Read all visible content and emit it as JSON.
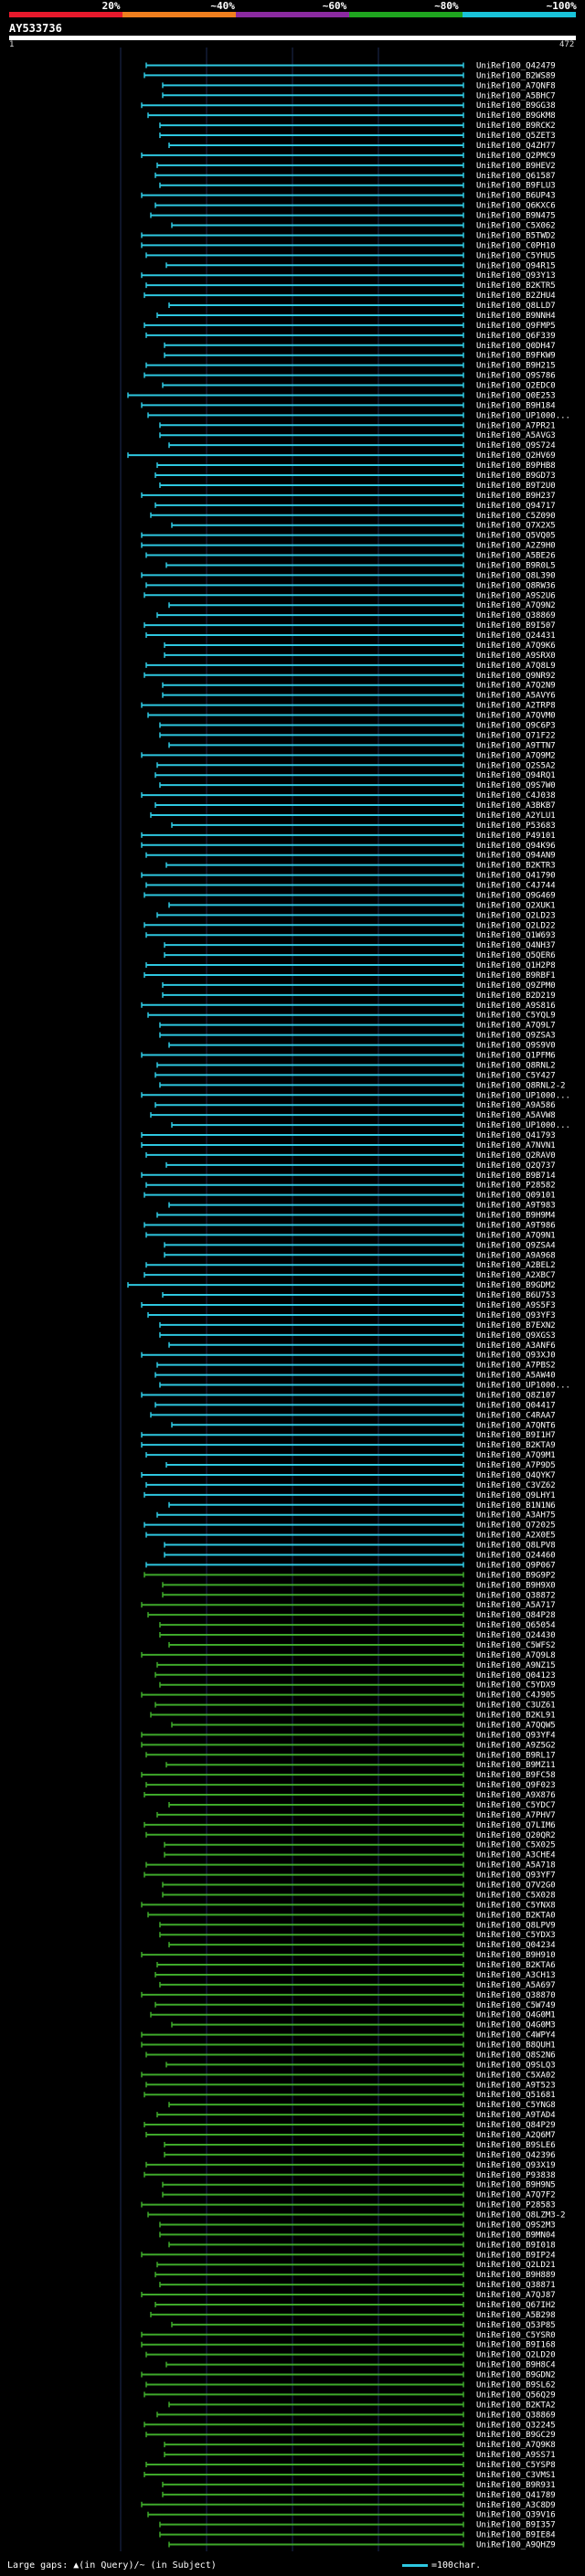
{
  "header": {
    "scale_labels": [
      "20%",
      "~40%",
      "~60%",
      "~80%",
      "~100%"
    ],
    "scale_colors": [
      "#e8192c",
      "#f07f1e",
      "#8b2aa0",
      "#1fa51f",
      "#19c3d9"
    ],
    "query_name": "AY533736",
    "ruler_start": "1",
    "ruler_end": "472"
  },
  "footer": {
    "gaps_legend": "Large gaps: ▲(in Query)/~ (in Subject)",
    "scale_legend": "=100char."
  },
  "colors": {
    "cyan": "#2ec7e0",
    "green": "#3ea82a",
    "background": "#000000"
  },
  "chart_data": {
    "type": "alignment",
    "query_length": 472,
    "hits": [
      "UniRef100_Q42479",
      "UniRef100_B2WS89",
      "UniRef100_A7QNF8",
      "UniRef100_A5BHC7",
      "UniRef100_B9GG38",
      "UniRef100_B9GKM8",
      "UniRef100_B9RCK2",
      "UniRef100_Q5ZET3",
      "UniRef100_Q4ZH77",
      "UniRef100_Q2PMC9",
      "UniRef100_B9HEV2",
      "UniRef100_Q61587",
      "UniRef100_B9FLU3",
      "UniRef100_B6UP43",
      "UniRef100_Q6KXC6",
      "UniRef100_B9N475",
      "UniRef100_C5X062",
      "UniRef100_B5TWD2",
      "UniRef100_C0PH10",
      "UniRef100_C5YHU5",
      "UniRef100_Q94R15",
      "UniRef100_Q93Y13",
      "UniRef100_B2KTR5",
      "UniRef100_B2ZHU4",
      "UniRef100_Q8LLD7",
      "UniRef100_B9NNH4",
      "UniRef100_Q9FMP5",
      "UniRef100_Q6F339",
      "UniRef100_Q0DH47",
      "UniRef100_B9FKW9",
      "UniRef100_B9H215",
      "UniRef100_Q9S786",
      "UniRef100_Q2EDC0",
      "UniRef100_Q0E253",
      "UniRef100_B9H184",
      "UniRef100_UP1000...",
      "UniRef100_A7PR21",
      "UniRef100_A5AVG3",
      "UniRef100_Q9S724",
      "UniRef100_Q2HV69",
      "UniRef100_B9PHB8",
      "UniRef100_B9GD73",
      "UniRef100_B9T2U0",
      "UniRef100_B9H237",
      "UniRef100_Q94717",
      "UniRef100_C5Z090",
      "UniRef100_Q7X2X5",
      "UniRef100_Q5VQ05",
      "UniRef100_A2Z9H0",
      "UniRef100_A5BE26",
      "UniRef100_B9R0L5",
      "UniRef100_Q8L390",
      "UniRef100_Q8RW36",
      "UniRef100_A9S2U6",
      "UniRef100_A7Q9N2",
      "UniRef100_Q38869",
      "UniRef100_B9I507",
      "UniRef100_Q24431",
      "UniRef100_A7Q9K6",
      "UniRef100_A9SRX0",
      "UniRef100_A7Q8L9",
      "UniRef100_Q9NR92",
      "UniRef100_A7Q2N9",
      "UniRef100_A5AVY6",
      "UniRef100_A2TRP8",
      "UniRef100_A7QVM0",
      "UniRef100_Q9C6P3",
      "UniRef100_Q71F22",
      "UniRef100_A9TTN7",
      "UniRef100_A7Q9M2",
      "UniRef100_Q2S5A2",
      "UniRef100_Q94RQ1",
      "UniRef100_Q9S7W0",
      "UniRef100_C4J038",
      "UniRef100_A3BKB7",
      "UniRef100_A2YLU1",
      "UniRef100_P53683",
      "UniRef100_P49101",
      "UniRef100_Q94K96",
      "UniRef100_Q94AN9",
      "UniRef100_B2KTR3",
      "UniRef100_Q41790",
      "UniRef100_C4J744",
      "UniRef100_Q9G469",
      "UniRef100_Q2XUK1",
      "UniRef100_Q2LD23",
      "UniRef100_Q2LD22",
      "UniRef100_Q1W693",
      "UniRef100_Q4NH37",
      "UniRef100_Q5QER6",
      "UniRef100_Q1H2P8",
      "UniRef100_B9RBF1",
      "UniRef100_Q9ZPM0",
      "UniRef100_B2D219",
      "UniRef100_A9S816",
      "UniRef100_C5YQL9",
      "UniRef100_A7Q9L7",
      "UniRef100_Q9ZSA3",
      "UniRef100_Q9S9V0",
      "UniRef100_Q1PFM6",
      "UniRef100_Q8RNL2",
      "UniRef100_C5Y427",
      "UniRef100_Q8RNL2-2",
      "UniRef100_UP1000...",
      "UniRef100_A9A586",
      "UniRef100_A5AVW8",
      "UniRef100_UP1000...",
      "UniRef100_Q41793",
      "UniRef100_A7NVN1",
      "UniRef100_Q2RAV0",
      "UniRef100_Q2Q737",
      "UniRef100_B9B714",
      "UniRef100_P28582",
      "UniRef100_Q09101",
      "UniRef100_A9T983",
      "UniRef100_B9H9M4",
      "UniRef100_A9T986",
      "UniRef100_A7Q9N1",
      "UniRef100_Q9ZSA4",
      "UniRef100_A9A968",
      "UniRef100_A2BEL2",
      "UniRef100_A2XBC7",
      "UniRef100_B9GDM2",
      "UniRef100_B6U753",
      "UniRef100_A9S5F3",
      "UniRef100_Q93YF3",
      "UniRef100_B7EXN2",
      "UniRef100_Q9XGS3",
      "UniRef100_A3ANF6",
      "UniRef100_Q93XJ0",
      "UniRef100_A7PBS2",
      "UniRef100_A5AW40",
      "UniRef100_UP1000...",
      "UniRef100_Q8Z107",
      "UniRef100_Q04417",
      "UniRef100_C4RAA7",
      "UniRef100_A7QNT6",
      "UniRef100_B9I1H7",
      "UniRef100_B2KTA9",
      "UniRef100_A7Q9M1",
      "UniRef100_A7P9D5",
      "UniRef100_Q4QYK7",
      "UniRef100_C3VZ62",
      "UniRef100_Q9LHY1",
      "UniRef100_B1N1N6",
      "UniRef100_A3AH75",
      "UniRef100_Q72025",
      "UniRef100_A2X0E5",
      "UniRef100_Q8LPV8",
      "UniRef100_Q24460",
      "UniRef100_Q9P067",
      "UniRef100_B9G9P2",
      "UniRef100_B9H9X0",
      "UniRef100_Q38872",
      "UniRef100_A5A717",
      "UniRef100_Q84P28",
      "UniRef100_Q65054",
      "UniRef100_Q24430",
      "UniRef100_C5WFS2",
      "UniRef100_A7Q9L8",
      "UniRef100_A9NZ15",
      "UniRef100_Q04123",
      "UniRef100_C5YDX9",
      "UniRef100_C4J905",
      "UniRef100_C3UZ61",
      "UniRef100_B2KL91",
      "UniRef100_A7QQW5",
      "UniRef100_Q93YF4",
      "UniRef100_A9Z5G2",
      "UniRef100_B9RL17",
      "UniRef100_B9MZ11",
      "UniRef100_B9FC58",
      "UniRef100_Q9F023",
      "UniRef100_A9X876",
      "UniRef100_C5YDC7",
      "UniRef100_A7PHV7",
      "UniRef100_Q7LIM6",
      "UniRef100_Q20QR2",
      "UniRef100_C5X025",
      "UniRef100_A3CHE4",
      "UniRef100_A5A718",
      "UniRef100_Q93YF7",
      "UniRef100_Q7V2G0",
      "UniRef100_C5X028",
      "UniRef100_C5YNX8",
      "UniRef100_B2KTA0",
      "UniRef100_Q8LPV9",
      "UniRef100_C5YDX3",
      "UniRef100_Q04234",
      "UniRef100_B9H910",
      "UniRef100_B2KTA6",
      "UniRef100_A3CH13",
      "UniRef100_A5A697",
      "UniRef100_Q38870",
      "UniRef100_C5W749",
      "UniRef100_Q4G0M1",
      "UniRef100_Q4G0M3",
      "UniRef100_C4WPY4",
      "UniRef100_B8QUH1",
      "UniRef100_Q8S2N6",
      "UniRef100_Q9SLQ3",
      "UniRef100_C5XA02",
      "UniRef100_A9T523",
      "UniRef100_Q51681",
      "UniRef100_C5YNG8",
      "UniRef100_A9TAD4",
      "UniRef100_Q84P29",
      "UniRef100_A2Q6M7",
      "UniRef100_B9SLE6",
      "UniRef100_Q42396",
      "UniRef100_Q93X19",
      "UniRef100_P93838",
      "UniRef100_B9H9N5",
      "UniRef100_A7Q7F2",
      "UniRef100_P28583",
      "UniRef100_Q8LZM3-2",
      "UniRef100_Q9S2M3",
      "UniRef100_B9MN04",
      "UniRef100_B9I018",
      "UniRef100_B9IP24",
      "UniRef100_Q2LD21",
      "UniRef100_B9H889",
      "UniRef100_Q38871",
      "UniRef100_A7QJ87",
      "UniRef100_Q67IH2",
      "UniRef100_A5B298",
      "UniRef100_Q53P85",
      "UniRef100_C5YSR0",
      "UniRef100_B9I168",
      "UniRef100_Q2LD20",
      "UniRef100_B9H8C4",
      "UniRef100_B9GDN2",
      "UniRef100_B9SL62",
      "UniRef100_Q56Q29",
      "UniRef100_B2KTA2",
      "UniRef100_Q38869",
      "UniRef100_Q32245",
      "UniRef100_B9GC29",
      "UniRef100_A7Q9K8",
      "UniRef100_A9SS71",
      "UniRef100_C5YSP8",
      "UniRef100_C3VMS1",
      "UniRef100_B9R931",
      "UniRef100_Q41789",
      "UniRef100_A3C8D9",
      "UniRef100_Q39V16",
      "UniRef100_B9I357",
      "UniRef100_B9IE84",
      "UniRef100_A9QHZ9"
    ],
    "cyan_rows": 151
  }
}
